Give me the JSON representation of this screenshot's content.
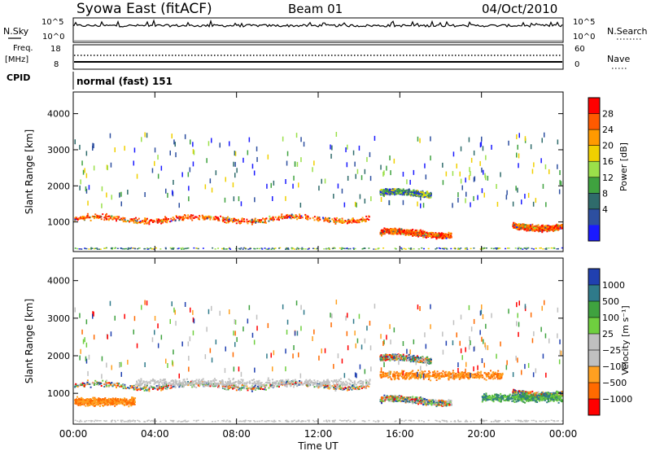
{
  "header": {
    "title": "Syowa East (fitACF)",
    "beam": "Beam 01",
    "date": "04/Oct/2010"
  },
  "aux_panels": {
    "nsky_label": "N.Sky",
    "nsearch_label": "N.Search",
    "freq_label_top": "Freq.",
    "freq_label_bottom": "[MHz]",
    "nave_label": "Nave",
    "cpid_label": "CPID",
    "cpid_value": "normal (fast) 151",
    "nsky_ticks": [
      "10^5",
      "10^0"
    ],
    "nsearch_ticks": [
      "10^5",
      "10^0"
    ],
    "freq_ticks": [
      "18",
      "8"
    ],
    "nave_ticks": [
      "60",
      "0"
    ]
  },
  "chart_data": [
    {
      "type": "heatmap",
      "quantity": "power",
      "ylabel": "Slant Range [km]",
      "xlabel": "",
      "ylim": [
        180,
        4600
      ],
      "yticks": [
        "4000",
        "3000",
        "2000",
        "1000"
      ],
      "xticks": [
        "00:00",
        "04:00",
        "08:00",
        "12:00",
        "16:00",
        "20:00",
        "00:00"
      ],
      "colorbar_label": "Power [dB]",
      "colorbar_ticks": [
        "28",
        "24",
        "20",
        "16",
        "12",
        "8",
        "4"
      ],
      "colorbar_colors": [
        "#ff0000",
        "#ff5a00",
        "#ff9a00",
        "#f0d000",
        "#9be04a",
        "#3fa23f",
        "#2f6b6b",
        "#2d4fa0",
        "#1a1aff"
      ],
      "features": [
        {
          "start_ut": 0.0,
          "end_ut": 14.5,
          "range_km": 1100,
          "intensity": "strong"
        },
        {
          "start_ut": 15.0,
          "end_ut": 18.5,
          "range_km": 700,
          "intensity": "strong"
        },
        {
          "start_ut": 15.0,
          "end_ut": 17.5,
          "range_km": 1800,
          "intensity": "medium"
        },
        {
          "start_ut": 21.5,
          "end_ut": 24.0,
          "range_km": 900,
          "intensity": "strong"
        }
      ]
    },
    {
      "type": "heatmap",
      "quantity": "velocity",
      "ylabel": "Slant Range [km]",
      "xlabel": "Time UT",
      "ylim": [
        180,
        4600
      ],
      "yticks": [
        "4000",
        "3000",
        "2000",
        "1000"
      ],
      "xticks": [
        "00:00",
        "04:00",
        "08:00",
        "12:00",
        "16:00",
        "20:00",
        "00:00"
      ],
      "colorbar_label": "Velocity [m s⁻¹]",
      "colorbar_ticks": [
        "1000",
        "500",
        "100",
        "25",
        "−25",
        "−100",
        "−500",
        "−1000"
      ],
      "colorbar_colors": [
        "#2040b0",
        "#2f7a8a",
        "#3fa23f",
        "#6fcf3f",
        "#c0c0c0",
        "#c0c0c0",
        "#ffa020",
        "#ff6a00",
        "#ff0000"
      ],
      "features": [
        {
          "start_ut": 3.0,
          "end_ut": 14.5,
          "range_km": 1300,
          "velocity_class": "ground-scatter"
        },
        {
          "start_ut": 0.0,
          "end_ut": 3.0,
          "range_km": 800,
          "velocity_class": "negative"
        },
        {
          "start_ut": 15.0,
          "end_ut": 21.0,
          "range_km": 1500,
          "velocity_class": "negative"
        },
        {
          "start_ut": 20.0,
          "end_ut": 24.0,
          "range_km": 900,
          "velocity_class": "positive"
        }
      ]
    }
  ]
}
